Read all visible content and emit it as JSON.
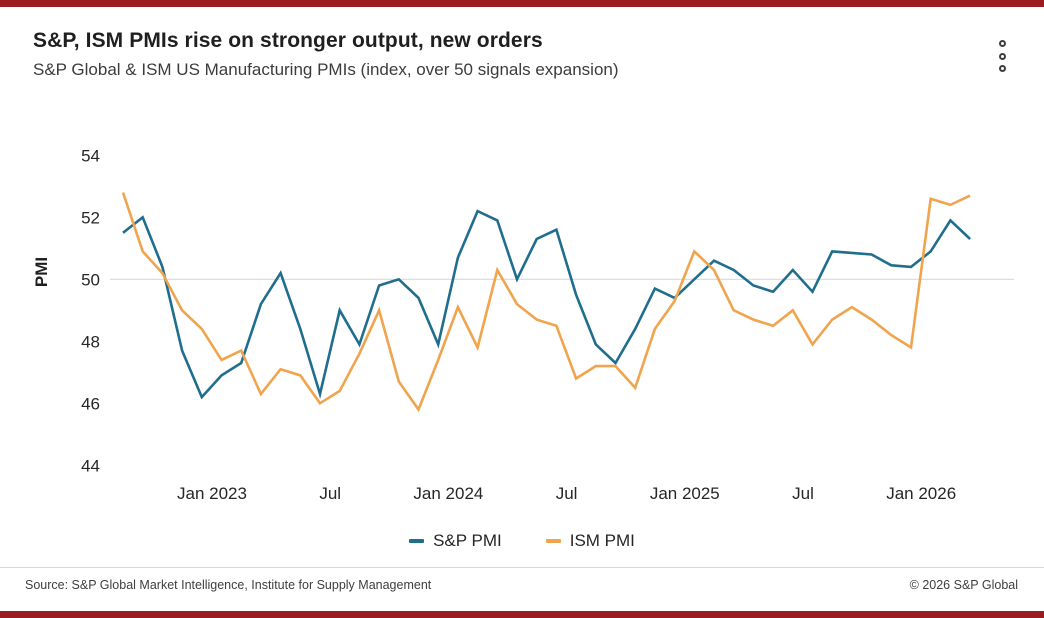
{
  "header": {
    "title": "S&P, ISM PMIs rise on stronger output, new orders",
    "subtitle": "S&P Global & ISM US Manufacturing PMIs (index, over 50 signals expansion)"
  },
  "colors": {
    "accent_bar": "#9a1c21",
    "sp_line": "#206e8e",
    "ism_line": "#f0a44e",
    "gridline": "#d9d9d9",
    "axis_text": "#262626"
  },
  "chart_data": {
    "type": "line",
    "title": "S&P, ISM PMIs rise on stronger output, new orders",
    "subtitle": "S&P Global & ISM US Manufacturing PMIs (index, over 50 signals expansion)",
    "ylabel": "PMI",
    "xlabel": "",
    "ylim": [
      44,
      54
    ],
    "y_ticks": [
      54,
      52,
      50,
      48,
      46,
      44
    ],
    "grid": "horizontal line at 50 only (over 50 signals expansion)",
    "reference_line": 50,
    "legend_position": "bottom",
    "x": [
      "Aug 2022",
      "Sep 2022",
      "Oct 2022",
      "Nov 2022",
      "Dec 2022",
      "Jan 2023",
      "Feb 2023",
      "Mar 2023",
      "Apr 2023",
      "May 2023",
      "Jun 2023",
      "Jul 2023",
      "Aug 2023",
      "Sep 2023",
      "Oct 2023",
      "Nov 2023",
      "Dec 2023",
      "Jan 2024",
      "Feb 2024",
      "Mar 2024",
      "Apr 2024",
      "May 2024",
      "Jun 2024",
      "Jul 2024",
      "Aug 2024",
      "Sep 2024",
      "Oct 2024",
      "Nov 2024",
      "Dec 2024",
      "Jan 2025",
      "Feb 2025",
      "Mar 2025",
      "Apr 2025",
      "May 2025",
      "Jun 2025",
      "Jul 2025",
      "Aug 2025",
      "Sep 2025",
      "Oct 2025",
      "Nov 2025",
      "Dec 2025",
      "Jan 2026",
      "Feb 2026",
      "Mar 2026"
    ],
    "x_tick_labels": [
      {
        "month_index": 5,
        "label": "Jan 2023"
      },
      {
        "month_index": 11,
        "label": "Jul"
      },
      {
        "month_index": 17,
        "label": "Jan 2024"
      },
      {
        "month_index": 23,
        "label": "Jul"
      },
      {
        "month_index": 29,
        "label": "Jan 2025"
      },
      {
        "month_index": 35,
        "label": "Jul"
      },
      {
        "month_index": 41,
        "label": "Jan 2026"
      }
    ],
    "series": [
      {
        "name": "S&P PMI",
        "color": "#206e8e",
        "values": [
          51.5,
          52.0,
          50.4,
          47.7,
          46.2,
          46.9,
          47.3,
          49.2,
          50.2,
          48.4,
          46.3,
          49.0,
          47.9,
          49.8,
          50.0,
          49.4,
          47.9,
          50.7,
          52.2,
          51.9,
          50.0,
          51.3,
          51.6,
          49.5,
          47.9,
          47.3,
          48.4,
          49.7,
          49.4,
          50.0,
          50.6,
          50.3,
          49.8,
          49.6,
          50.3,
          49.6,
          50.9,
          50.85,
          50.8,
          50.45,
          50.4,
          50.9,
          51.9,
          51.3
        ]
      },
      {
        "name": "ISM PMI",
        "color": "#f0a44e",
        "values": [
          52.8,
          50.9,
          50.2,
          49.0,
          48.4,
          47.4,
          47.7,
          46.3,
          47.1,
          46.9,
          46.0,
          46.4,
          47.6,
          49.0,
          46.7,
          45.8,
          47.4,
          49.1,
          47.8,
          50.3,
          49.2,
          48.7,
          48.5,
          46.8,
          47.2,
          47.2,
          46.5,
          48.4,
          49.3,
          50.9,
          50.3,
          49.0,
          48.7,
          48.5,
          49.0,
          47.9,
          48.7,
          49.1,
          48.7,
          48.2,
          47.8,
          52.6,
          52.4,
          52.7
        ]
      }
    ]
  },
  "legend": {
    "items": [
      {
        "label": "S&P PMI",
        "color": "#206e8e"
      },
      {
        "label": "ISM PMI",
        "color": "#f0a44e"
      }
    ]
  },
  "footer": {
    "source": "Source: S&P Global Market Intelligence, Institute for Supply Management",
    "copyright": "© 2026 S&P Global"
  }
}
